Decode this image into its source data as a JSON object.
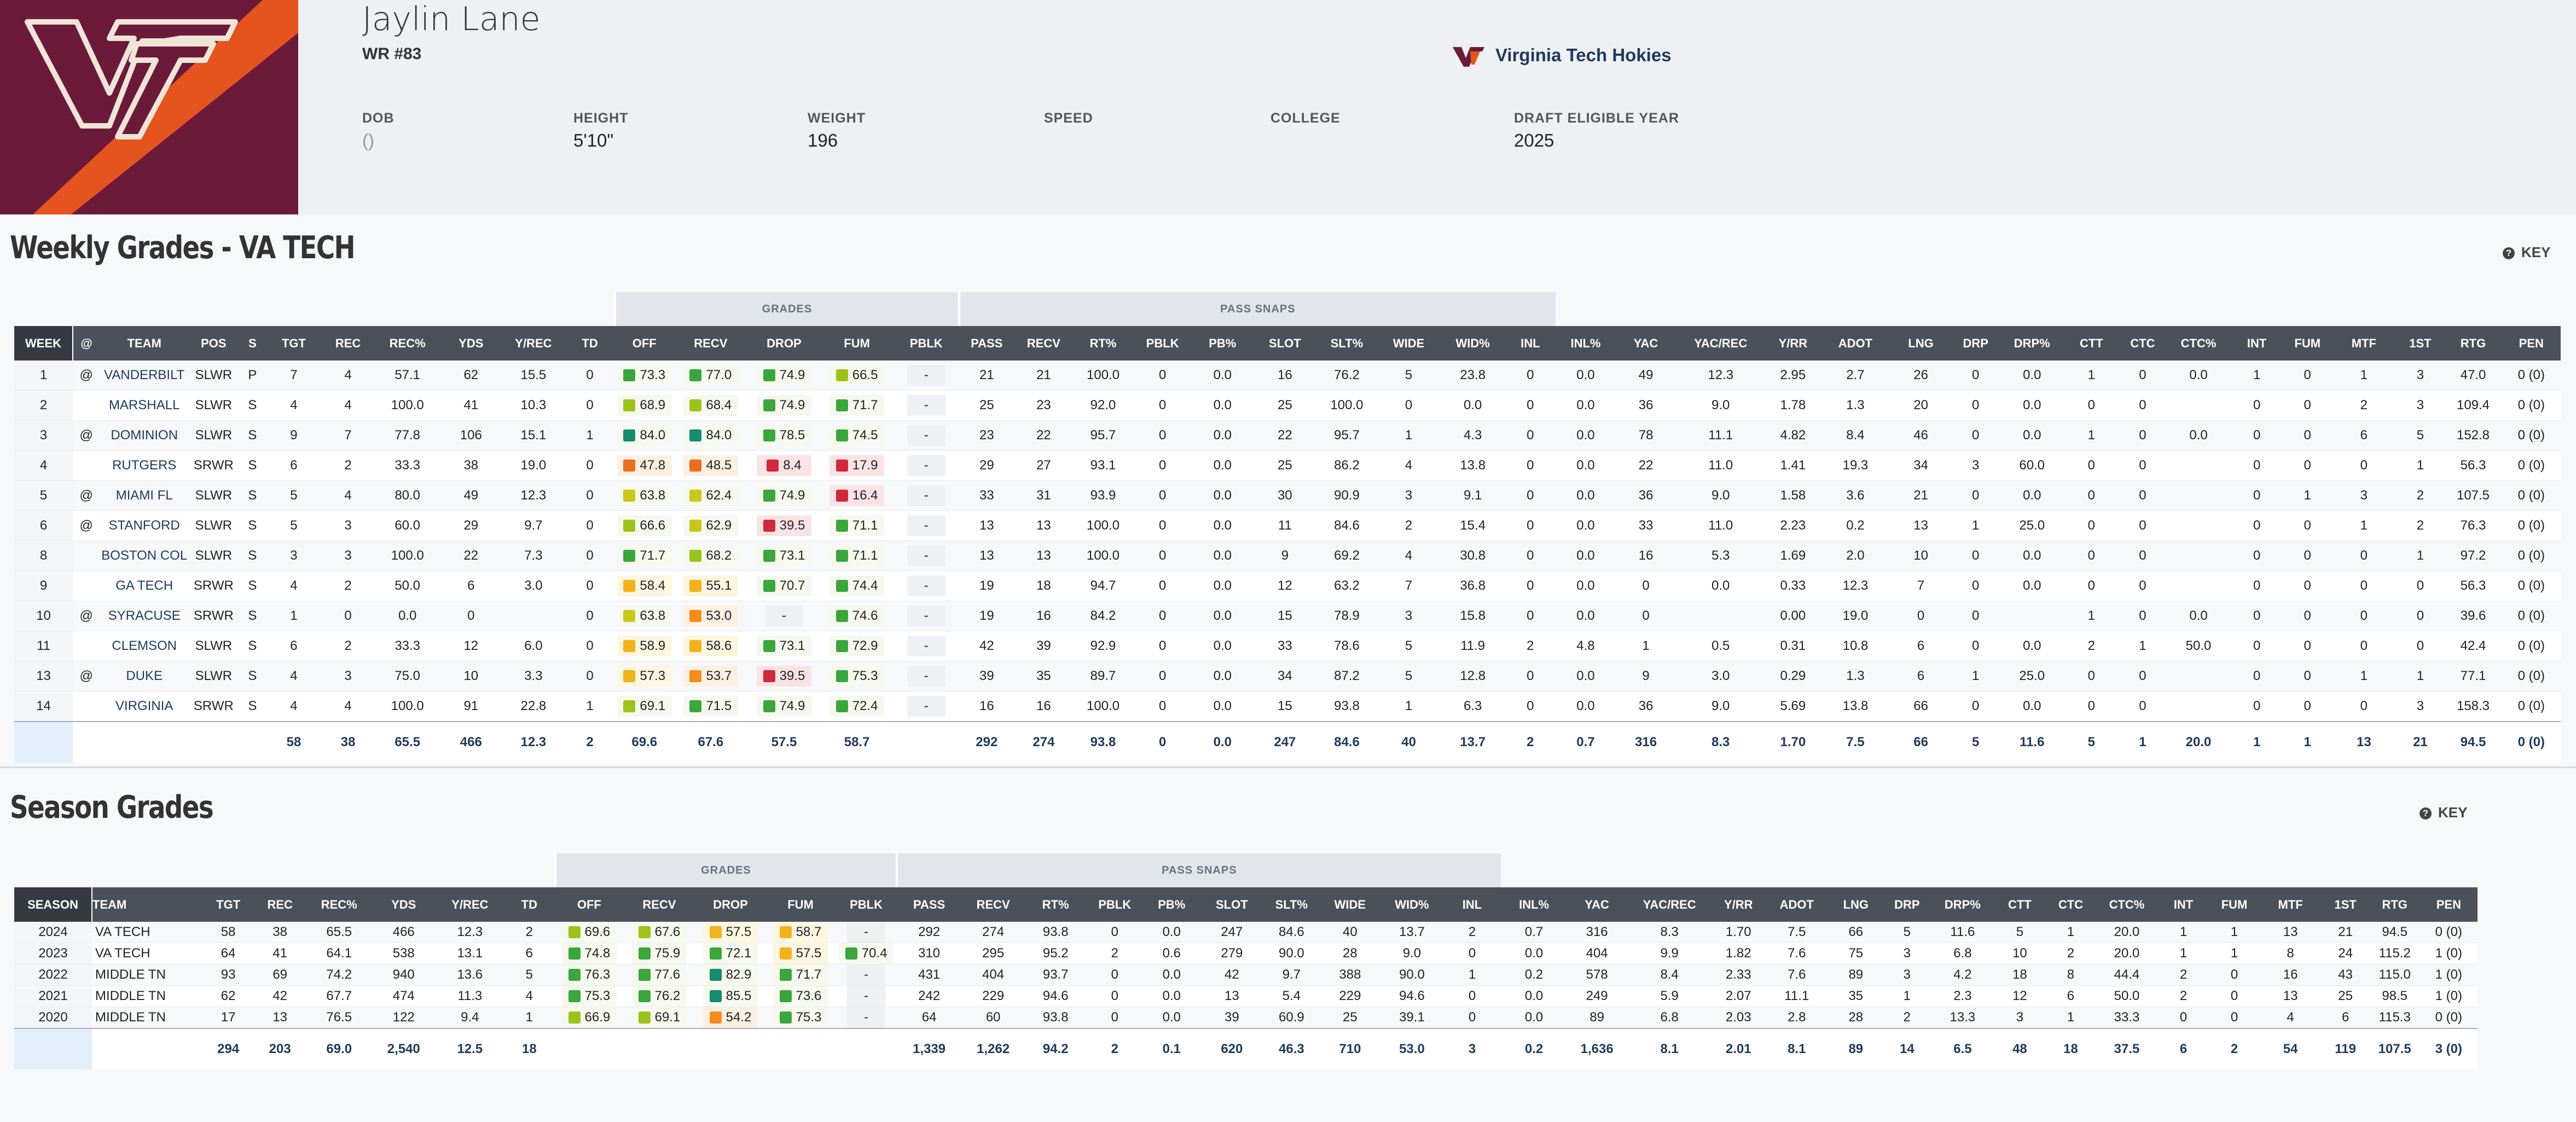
{
  "player": {
    "name": "Jaylin Lane",
    "position": "WR #83",
    "team": "Virginia Tech Hokies",
    "team_logo_icon": "vt-hokies-logo",
    "colors": {
      "maroon": "#6b1a3a",
      "orange": "#e5541e"
    },
    "bio": [
      {
        "label": "DOB",
        "value": "()"
      },
      {
        "label": "HEIGHT",
        "value": "5'10\""
      },
      {
        "label": "WEIGHT",
        "value": "196"
      },
      {
        "label": "SPEED",
        "value": ""
      },
      {
        "label": "COLLEGE",
        "value": ""
      },
      {
        "label": "DRAFT ELIGIBLE YEAR",
        "value": "2025"
      }
    ]
  },
  "weekly": {
    "title": "Weekly Grades - VA TECH",
    "key_label": "KEY",
    "group_grades": "GRADES",
    "group_pass_snaps": "PASS SNAPS",
    "columns": [
      "WEEK",
      "@",
      "TEAM",
      "POS",
      "S",
      "TGT",
      "REC",
      "REC%",
      "YDS",
      "Y/REC",
      "TD",
      "OFF",
      "RECV",
      "DROP",
      "FUM",
      "PBLK",
      "PASS",
      "RECV",
      "RT%",
      "PBLK",
      "PB%",
      "SLOT",
      "SLT%",
      "WIDE",
      "WID%",
      "INL",
      "INL%",
      "YAC",
      "YAC/REC",
      "Y/RR",
      "ADOT",
      "LNG",
      "DRP",
      "DRP%",
      "CTT",
      "CTC",
      "CTC%",
      "INT",
      "FUM",
      "MTF",
      "1ST",
      "RTG",
      "PEN"
    ],
    "rows": [
      [
        "1",
        "@",
        "VANDERBILT",
        "SLWR",
        "P",
        "7",
        "4",
        "57.1",
        "62",
        "15.5",
        "0",
        "73.3",
        "77.0",
        "74.9",
        "66.5",
        "-",
        "21",
        "21",
        "100.0",
        "0",
        "0.0",
        "16",
        "76.2",
        "5",
        "23.8",
        "0",
        "0.0",
        "49",
        "12.3",
        "2.95",
        "2.7",
        "26",
        "0",
        "0.0",
        "1",
        "0",
        "0.0",
        "1",
        "0",
        "1",
        "3",
        "47.0",
        "0 (0)"
      ],
      [
        "2",
        "",
        "MARSHALL",
        "SLWR",
        "S",
        "4",
        "4",
        "100.0",
        "41",
        "10.3",
        "0",
        "68.9",
        "68.4",
        "74.9",
        "71.7",
        "-",
        "25",
        "23",
        "92.0",
        "0",
        "0.0",
        "25",
        "100.0",
        "0",
        "0.0",
        "0",
        "0.0",
        "36",
        "9.0",
        "1.78",
        "1.3",
        "20",
        "0",
        "0.0",
        "0",
        "0",
        "",
        "0",
        "0",
        "2",
        "3",
        "109.4",
        "0 (0)"
      ],
      [
        "3",
        "@",
        "DOMINION",
        "SLWR",
        "S",
        "9",
        "7",
        "77.8",
        "106",
        "15.1",
        "1",
        "84.0",
        "84.0",
        "78.5",
        "74.5",
        "-",
        "23",
        "22",
        "95.7",
        "0",
        "0.0",
        "22",
        "95.7",
        "1",
        "4.3",
        "0",
        "0.0",
        "78",
        "11.1",
        "4.82",
        "8.4",
        "46",
        "0",
        "0.0",
        "1",
        "0",
        "0.0",
        "0",
        "0",
        "6",
        "5",
        "152.8",
        "0 (0)"
      ],
      [
        "4",
        "",
        "RUTGERS",
        "SRWR",
        "S",
        "6",
        "2",
        "33.3",
        "38",
        "19.0",
        "0",
        "47.8",
        "48.5",
        "8.4",
        "17.9",
        "-",
        "29",
        "27",
        "93.1",
        "0",
        "0.0",
        "25",
        "86.2",
        "4",
        "13.8",
        "0",
        "0.0",
        "22",
        "11.0",
        "1.41",
        "19.3",
        "34",
        "3",
        "60.0",
        "0",
        "0",
        "",
        "0",
        "0",
        "0",
        "1",
        "56.3",
        "0 (0)"
      ],
      [
        "5",
        "@",
        "MIAMI FL",
        "SLWR",
        "S",
        "5",
        "4",
        "80.0",
        "49",
        "12.3",
        "0",
        "63.8",
        "62.4",
        "74.9",
        "16.4",
        "-",
        "33",
        "31",
        "93.9",
        "0",
        "0.0",
        "30",
        "90.9",
        "3",
        "9.1",
        "0",
        "0.0",
        "36",
        "9.0",
        "1.58",
        "3.6",
        "21",
        "0",
        "0.0",
        "0",
        "0",
        "",
        "0",
        "1",
        "3",
        "2",
        "107.5",
        "0 (0)"
      ],
      [
        "6",
        "@",
        "STANFORD",
        "SLWR",
        "S",
        "5",
        "3",
        "60.0",
        "29",
        "9.7",
        "0",
        "66.6",
        "62.9",
        "39.5",
        "71.1",
        "-",
        "13",
        "13",
        "100.0",
        "0",
        "0.0",
        "11",
        "84.6",
        "2",
        "15.4",
        "0",
        "0.0",
        "33",
        "11.0",
        "2.23",
        "0.2",
        "13",
        "1",
        "25.0",
        "0",
        "0",
        "",
        "0",
        "0",
        "1",
        "2",
        "76.3",
        "0 (0)"
      ],
      [
        "8",
        "",
        "BOSTON COL",
        "SLWR",
        "S",
        "3",
        "3",
        "100.0",
        "22",
        "7.3",
        "0",
        "71.7",
        "68.2",
        "73.1",
        "71.1",
        "-",
        "13",
        "13",
        "100.0",
        "0",
        "0.0",
        "9",
        "69.2",
        "4",
        "30.8",
        "0",
        "0.0",
        "16",
        "5.3",
        "1.69",
        "2.0",
        "10",
        "0",
        "0.0",
        "0",
        "0",
        "",
        "0",
        "0",
        "0",
        "1",
        "97.2",
        "0 (0)"
      ],
      [
        "9",
        "",
        "GA TECH",
        "SRWR",
        "S",
        "4",
        "2",
        "50.0",
        "6",
        "3.0",
        "0",
        "58.4",
        "55.1",
        "70.7",
        "74.4",
        "-",
        "19",
        "18",
        "94.7",
        "0",
        "0.0",
        "12",
        "63.2",
        "7",
        "36.8",
        "0",
        "0.0",
        "0",
        "0.0",
        "0.33",
        "12.3",
        "7",
        "0",
        "0.0",
        "0",
        "0",
        "",
        "0",
        "0",
        "0",
        "0",
        "56.3",
        "0 (0)"
      ],
      [
        "10",
        "@",
        "SYRACUSE",
        "SRWR",
        "S",
        "1",
        "0",
        "0.0",
        "0",
        "",
        "0",
        "63.8",
        "53.0",
        "-",
        "74.6",
        "-",
        "19",
        "16",
        "84.2",
        "0",
        "0.0",
        "15",
        "78.9",
        "3",
        "15.8",
        "0",
        "0.0",
        "0",
        "",
        "0.00",
        "19.0",
        "0",
        "0",
        "",
        "1",
        "0",
        "0.0",
        "0",
        "0",
        "0",
        "0",
        "39.6",
        "0 (0)"
      ],
      [
        "11",
        "",
        "CLEMSON",
        "SLWR",
        "S",
        "6",
        "2",
        "33.3",
        "12",
        "6.0",
        "0",
        "58.9",
        "58.6",
        "73.1",
        "72.9",
        "-",
        "42",
        "39",
        "92.9",
        "0",
        "0.0",
        "33",
        "78.6",
        "5",
        "11.9",
        "2",
        "4.8",
        "1",
        "0.5",
        "0.31",
        "10.8",
        "6",
        "0",
        "0.0",
        "2",
        "1",
        "50.0",
        "0",
        "0",
        "0",
        "0",
        "42.4",
        "0 (0)"
      ],
      [
        "13",
        "@",
        "DUKE",
        "SLWR",
        "S",
        "4",
        "3",
        "75.0",
        "10",
        "3.3",
        "0",
        "57.3",
        "53.7",
        "39.5",
        "75.3",
        "-",
        "39",
        "35",
        "89.7",
        "0",
        "0.0",
        "34",
        "87.2",
        "5",
        "12.8",
        "0",
        "0.0",
        "9",
        "3.0",
        "0.29",
        "1.3",
        "6",
        "1",
        "25.0",
        "0",
        "0",
        "",
        "0",
        "0",
        "1",
        "1",
        "77.1",
        "0 (0)"
      ],
      [
        "14",
        "",
        "VIRGINIA",
        "SRWR",
        "S",
        "4",
        "4",
        "100.0",
        "91",
        "22.8",
        "1",
        "69.1",
        "71.5",
        "74.9",
        "72.4",
        "-",
        "16",
        "16",
        "100.0",
        "0",
        "0.0",
        "15",
        "93.8",
        "1",
        "6.3",
        "0",
        "0.0",
        "36",
        "9.0",
        "5.69",
        "13.8",
        "66",
        "0",
        "0.0",
        "0",
        "0",
        "",
        "0",
        "0",
        "0",
        "3",
        "158.3",
        "0 (0)"
      ]
    ],
    "totals": [
      "",
      "",
      "",
      "",
      "",
      "58",
      "38",
      "65.5",
      "466",
      "12.3",
      "2",
      "69.6",
      "67.6",
      "57.5",
      "58.7",
      "",
      "292",
      "274",
      "93.8",
      "0",
      "0.0",
      "247",
      "84.6",
      "40",
      "13.7",
      "2",
      "0.7",
      "316",
      "8.3",
      "1.70",
      "7.5",
      "66",
      "5",
      "11.6",
      "5",
      "1",
      "20.0",
      "1",
      "1",
      "13",
      "21",
      "94.5",
      "0 (0)"
    ]
  },
  "season": {
    "title": "Season Grades",
    "key_label": "KEY",
    "group_grades": "GRADES",
    "group_pass_snaps": "PASS SNAPS",
    "columns": [
      "SEASON",
      "TEAM",
      "TGT",
      "REC",
      "REC%",
      "YDS",
      "Y/REC",
      "TD",
      "OFF",
      "RECV",
      "DROP",
      "FUM",
      "PBLK",
      "PASS",
      "RECV",
      "RT%",
      "PBLK",
      "PB%",
      "SLOT",
      "SLT%",
      "WIDE",
      "WID%",
      "INL",
      "INL%",
      "YAC",
      "YAC/REC",
      "Y/RR",
      "ADOT",
      "LNG",
      "DRP",
      "DRP%",
      "CTT",
      "CTC",
      "CTC%",
      "INT",
      "FUM",
      "MTF",
      "1ST",
      "RTG",
      "PEN"
    ],
    "rows": [
      [
        "2024",
        "VA TECH",
        "58",
        "38",
        "65.5",
        "466",
        "12.3",
        "2",
        "69.6",
        "67.6",
        "57.5",
        "58.7",
        "-",
        "292",
        "274",
        "93.8",
        "0",
        "0.0",
        "247",
        "84.6",
        "40",
        "13.7",
        "2",
        "0.7",
        "316",
        "8.3",
        "1.70",
        "7.5",
        "66",
        "5",
        "11.6",
        "5",
        "1",
        "20.0",
        "1",
        "1",
        "13",
        "21",
        "94.5",
        "0 (0)"
      ],
      [
        "2023",
        "VA TECH",
        "64",
        "41",
        "64.1",
        "538",
        "13.1",
        "6",
        "74.8",
        "75.9",
        "72.1",
        "57.5",
        "70.4",
        "310",
        "295",
        "95.2",
        "2",
        "0.6",
        "279",
        "90.0",
        "28",
        "9.0",
        "0",
        "0.0",
        "404",
        "9.9",
        "1.82",
        "7.6",
        "75",
        "3",
        "6.8",
        "10",
        "2",
        "20.0",
        "1",
        "1",
        "8",
        "24",
        "115.2",
        "1 (0)"
      ],
      [
        "2022",
        "MIDDLE TN",
        "93",
        "69",
        "74.2",
        "940",
        "13.6",
        "5",
        "76.3",
        "77.6",
        "82.9",
        "71.7",
        "-",
        "431",
        "404",
        "93.7",
        "0",
        "0.0",
        "42",
        "9.7",
        "388",
        "90.0",
        "1",
        "0.2",
        "578",
        "8.4",
        "2.33",
        "7.6",
        "89",
        "3",
        "4.2",
        "18",
        "8",
        "44.4",
        "2",
        "0",
        "16",
        "43",
        "115.0",
        "1 (0)"
      ],
      [
        "2021",
        "MIDDLE TN",
        "62",
        "42",
        "67.7",
        "474",
        "11.3",
        "4",
        "75.3",
        "76.2",
        "85.5",
        "73.6",
        "-",
        "242",
        "229",
        "94.6",
        "0",
        "0.0",
        "13",
        "5.4",
        "229",
        "94.6",
        "0",
        "0.0",
        "249",
        "5.9",
        "2.07",
        "11.1",
        "35",
        "1",
        "2.3",
        "12",
        "6",
        "50.0",
        "2",
        "0",
        "13",
        "25",
        "98.5",
        "1 (0)"
      ],
      [
        "2020",
        "MIDDLE TN",
        "17",
        "13",
        "76.5",
        "122",
        "9.4",
        "1",
        "66.9",
        "69.1",
        "54.2",
        "75.3",
        "-",
        "64",
        "60",
        "93.8",
        "0",
        "0.0",
        "39",
        "60.9",
        "25",
        "39.1",
        "0",
        "0.0",
        "89",
        "6.8",
        "2.03",
        "2.8",
        "28",
        "2",
        "13.3",
        "3",
        "1",
        "33.3",
        "0",
        "0",
        "4",
        "6",
        "115.3",
        "0 (0)"
      ]
    ],
    "totals": [
      "",
      "",
      "294",
      "203",
      "69.0",
      "2,540",
      "12.5",
      "18",
      "",
      "",
      "",
      "",
      "",
      "1,339",
      "1,262",
      "94.2",
      "2",
      "0.1",
      "620",
      "46.3",
      "710",
      "53.0",
      "3",
      "0.2",
      "1,636",
      "8.1",
      "2.01",
      "8.1",
      "89",
      "14",
      "6.5",
      "48",
      "18",
      "37.5",
      "6",
      "2",
      "54",
      "119",
      "107.5",
      "3 (0)"
    ]
  }
}
